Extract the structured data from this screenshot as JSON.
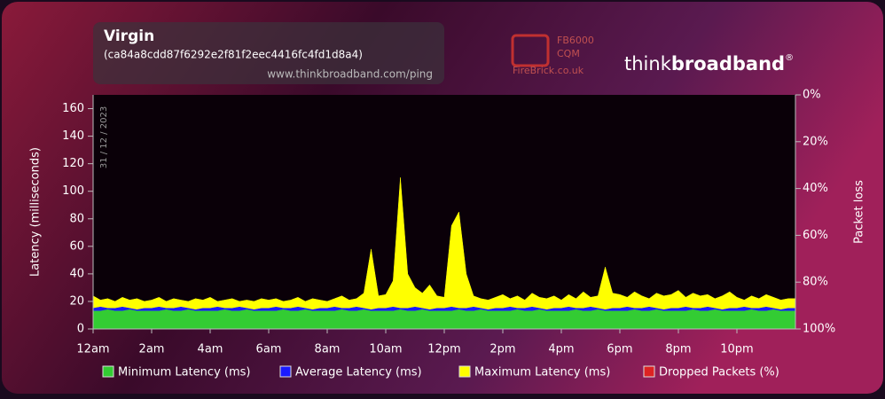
{
  "chart_data": {
    "type": "area",
    "title": "Virgin",
    "subtitle": "(ca84a8cdd87f6292e2f81f2eec4416fc4fd1d8a4)",
    "source_url": "www.thinkbroadband.com/ping",
    "date": "31 / 12 / 2023",
    "firebrick": {
      "model": "FB6000",
      "product": "CQM",
      "site": "FireBrick.co.uk"
    },
    "brand": {
      "think": "think",
      "broadband": "broadband",
      "mark": "®"
    },
    "y_label": "Latency (milliseconds)",
    "y2_label": "Packet loss",
    "xlim": [
      0,
      24
    ],
    "xticks": [
      {
        "value": 0,
        "label": "12am"
      },
      {
        "value": 2,
        "label": "2am"
      },
      {
        "value": 4,
        "label": "4am"
      },
      {
        "value": 6,
        "label": "6am"
      },
      {
        "value": 8,
        "label": "8am"
      },
      {
        "value": 10,
        "label": "10am"
      },
      {
        "value": 12,
        "label": "12pm"
      },
      {
        "value": 14,
        "label": "2pm"
      },
      {
        "value": 16,
        "label": "4pm"
      },
      {
        "value": 18,
        "label": "6pm"
      },
      {
        "value": 20,
        "label": "8pm"
      },
      {
        "value": 22,
        "label": "10pm"
      }
    ],
    "ylim": [
      0,
      170
    ],
    "yticks": [
      0,
      20,
      40,
      60,
      80,
      100,
      120,
      140,
      160
    ],
    "y2lim": [
      100,
      0
    ],
    "y2ticks": [
      {
        "value": 0,
        "label": "0%"
      },
      {
        "value": 20,
        "label": "20%"
      },
      {
        "value": 40,
        "label": "40%"
      },
      {
        "value": 60,
        "label": "60%"
      },
      {
        "value": 80,
        "label": "80%"
      },
      {
        "value": 100,
        "label": "100%"
      }
    ],
    "x": [
      0,
      0.25,
      0.5,
      0.75,
      1,
      1.25,
      1.5,
      1.75,
      2,
      2.25,
      2.5,
      2.75,
      3,
      3.25,
      3.5,
      3.75,
      4,
      4.25,
      4.5,
      4.75,
      5,
      5.25,
      5.5,
      5.75,
      6,
      6.25,
      6.5,
      6.75,
      7,
      7.25,
      7.5,
      7.75,
      8,
      8.25,
      8.5,
      8.75,
      9,
      9.25,
      9.5,
      9.75,
      10,
      10.25,
      10.5,
      10.75,
      11,
      11.25,
      11.5,
      11.75,
      12,
      12.25,
      12.5,
      12.75,
      13,
      13.25,
      13.5,
      13.75,
      14,
      14.25,
      14.5,
      14.75,
      15,
      15.25,
      15.5,
      15.75,
      16,
      16.25,
      16.5,
      16.75,
      17,
      17.25,
      17.5,
      17.75,
      18,
      18.25,
      18.5,
      18.75,
      19,
      19.25,
      19.5,
      19.75,
      20,
      20.25,
      20.5,
      20.75,
      21,
      21.25,
      21.5,
      21.75,
      22,
      22.25,
      22.5,
      22.75,
      23,
      23.25,
      23.5,
      23.75
    ],
    "series": [
      {
        "name": "Minimum Latency (ms)",
        "color": "#33cc33",
        "values": [
          13,
          13,
          14,
          13,
          13,
          14,
          13,
          13,
          13,
          13,
          14,
          13,
          13,
          14,
          13,
          13,
          13,
          13,
          14,
          13,
          13,
          14,
          13,
          13,
          13,
          13,
          14,
          13,
          13,
          14,
          13,
          13,
          13,
          13,
          14,
          13,
          13,
          14,
          13,
          13,
          13,
          13,
          14,
          13,
          13,
          14,
          13,
          13,
          13,
          13,
          14,
          13,
          13,
          14,
          13,
          13,
          13,
          13,
          14,
          13,
          13,
          14,
          13,
          13,
          13,
          13,
          14,
          13,
          13,
          14,
          13,
          13,
          13,
          13,
          14,
          13,
          13,
          14,
          13,
          13,
          13,
          13,
          14,
          13,
          13,
          14,
          13,
          13,
          13,
          13,
          14,
          13,
          13,
          14,
          13,
          13
        ]
      },
      {
        "name": "Average Latency (ms)",
        "color": "#1a1aff",
        "values": [
          15,
          16,
          15,
          15,
          16,
          15,
          14,
          15,
          15,
          16,
          15,
          15,
          16,
          15,
          14,
          15,
          15,
          16,
          15,
          15,
          16,
          15,
          14,
          15,
          15,
          16,
          15,
          15,
          16,
          15,
          14,
          15,
          15,
          16,
          15,
          15,
          16,
          15,
          14,
          15,
          15,
          16,
          15,
          15,
          16,
          15,
          14,
          15,
          15,
          16,
          15,
          15,
          16,
          15,
          14,
          15,
          15,
          16,
          15,
          15,
          16,
          15,
          14,
          15,
          15,
          16,
          15,
          15,
          16,
          15,
          14,
          15,
          15,
          16,
          15,
          15,
          16,
          15,
          14,
          15,
          15,
          16,
          15,
          15,
          16,
          15,
          14,
          15,
          15,
          16,
          15,
          15,
          16,
          15,
          14,
          15
        ]
      },
      {
        "name": "Maximum Latency (ms)",
        "color": "#ffff00",
        "values": [
          24,
          21,
          22,
          20,
          23,
          21,
          22,
          20,
          21,
          23,
          20,
          22,
          21,
          20,
          22,
          21,
          23,
          20,
          21,
          22,
          20,
          21,
          20,
          22,
          21,
          22,
          20,
          21,
          23,
          20,
          22,
          21,
          20,
          22,
          24,
          21,
          22,
          26,
          58,
          24,
          25,
          35,
          110,
          40,
          30,
          26,
          32,
          24,
          23,
          75,
          85,
          40,
          24,
          22,
          21,
          23,
          25,
          22,
          24,
          21,
          26,
          23,
          22,
          24,
          21,
          25,
          22,
          27,
          23,
          24,
          45,
          26,
          25,
          23,
          27,
          24,
          22,
          26,
          24,
          25,
          28,
          23,
          26,
          24,
          25,
          22,
          24,
          27,
          23,
          21,
          24,
          22,
          25,
          23,
          21,
          22
        ]
      },
      {
        "name": "Dropped Packets (%)",
        "color": "#dd2222",
        "axis": "y2",
        "values": [
          0,
          0,
          0,
          0,
          0,
          0,
          0,
          0,
          0,
          0,
          0,
          0,
          0,
          0,
          0,
          0,
          0,
          0,
          0,
          0,
          0,
          0,
          0,
          0,
          0,
          0,
          0,
          0,
          0,
          0,
          0,
          0,
          0,
          0,
          0,
          0,
          0,
          0,
          0,
          0,
          0,
          0,
          0,
          0,
          0,
          0,
          0,
          0,
          0,
          0,
          0,
          0,
          0,
          0,
          0,
          0,
          0,
          0,
          0,
          0,
          0,
          0,
          0,
          0,
          0,
          0,
          0,
          0,
          0,
          0,
          0,
          0,
          0,
          0,
          0,
          0,
          0,
          0,
          0,
          0,
          0,
          0,
          0,
          0,
          0,
          0,
          0,
          0,
          0,
          0,
          0,
          0,
          0,
          0,
          0,
          0
        ]
      }
    ]
  }
}
